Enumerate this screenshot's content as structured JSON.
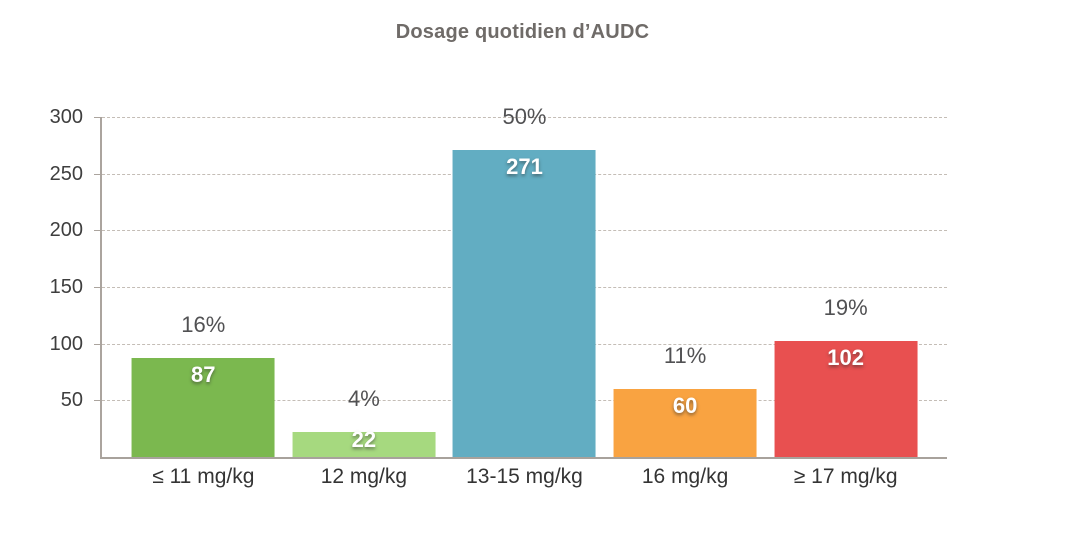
{
  "chart_data": {
    "type": "bar",
    "title": "Dosage quotidien d’AUDC",
    "categories": [
      "≤ 11 mg/kg",
      "12 mg/kg",
      "13-15 mg/kg",
      "16 mg/kg",
      "≥ 17 mg/kg"
    ],
    "values": [
      87,
      22,
      271,
      60,
      102
    ],
    "percent_labels": [
      "16%",
      "4%",
      "50%",
      "11%",
      "19%"
    ],
    "bar_colors": [
      "#7bb84f",
      "#a6d97f",
      "#62adc2",
      "#f9a341",
      "#e85050"
    ],
    "y_ticks": [
      50,
      100,
      150,
      200,
      250,
      300
    ],
    "ylim": [
      0,
      300
    ],
    "grid": "horizontal dashed",
    "legend": "none",
    "xlabel": "",
    "ylabel": "",
    "colors": {
      "bar_value_text": "#ffffff",
      "percent_text": "#515153",
      "category_text": "#343434",
      "ytick_text": "#3e3e3e",
      "axis": "#aba49e",
      "gridline": "#c4bdb6",
      "title_text": "#6f6b68",
      "background": "#ffffff"
    }
  }
}
